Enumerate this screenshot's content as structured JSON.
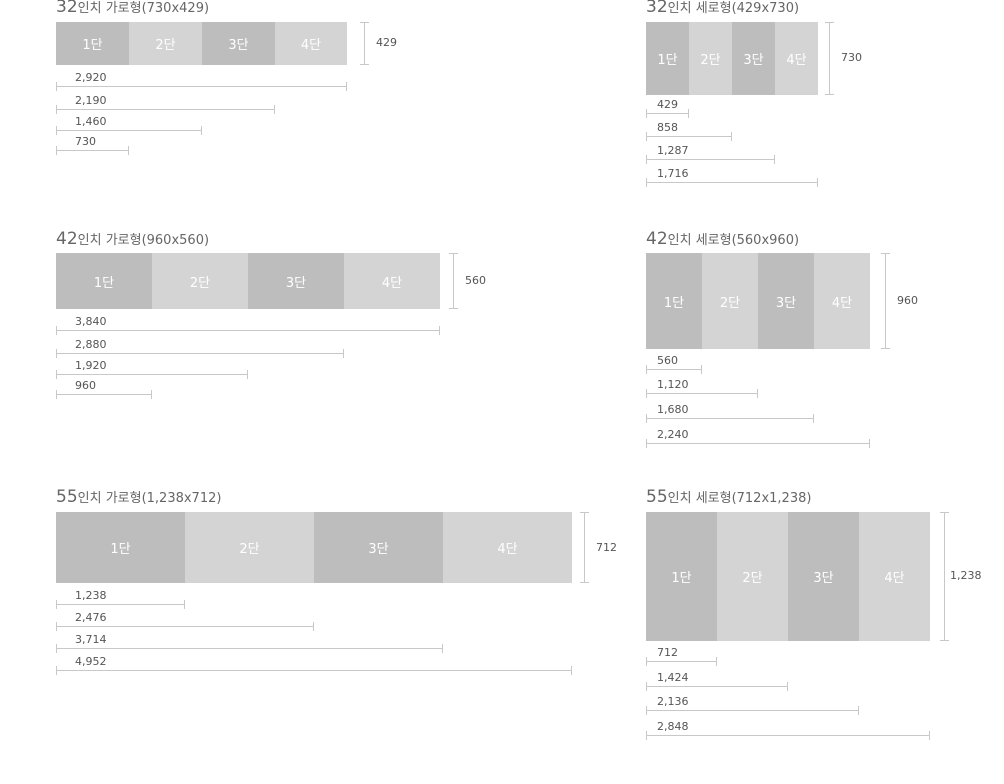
{
  "diagrams": [
    {
      "title_num": "32",
      "title_text": "인치 가로형(730x429)",
      "segments": [
        "1단",
        "2단",
        "3단",
        "4단"
      ],
      "height_label": "429",
      "widths": [
        "2,920",
        "2,190",
        "1,460",
        "730"
      ]
    },
    {
      "title_num": "32",
      "title_text": "인치 세로형(429x730)",
      "segments": [
        "1단",
        "2단",
        "3단",
        "4단"
      ],
      "height_label": "730",
      "widths": [
        "429",
        "858",
        "1,287",
        "1,716"
      ]
    },
    {
      "title_num": "42",
      "title_text": "인치 가로형(960x560)",
      "segments": [
        "1단",
        "2단",
        "3단",
        "4단"
      ],
      "height_label": "560",
      "widths": [
        "3,840",
        "2,880",
        "1,920",
        "960"
      ]
    },
    {
      "title_num": "42",
      "title_text": "인치 세로형(560x960)",
      "segments": [
        "1단",
        "2단",
        "3단",
        "4단"
      ],
      "height_label": "960",
      "widths": [
        "560",
        "1,120",
        "1,680",
        "2,240"
      ]
    },
    {
      "title_num": "55",
      "title_text": "인치 가로형(1,238x712)",
      "segments": [
        "1단",
        "2단",
        "3단",
        "4단"
      ],
      "height_label": "712",
      "widths": [
        "1,238",
        "2,476",
        "3,714",
        "4,952"
      ]
    },
    {
      "title_num": "55",
      "title_text": "인치 세로형(712x1,238)",
      "segments": [
        "1단",
        "2단",
        "3단",
        "4단"
      ],
      "height_label": "1,238",
      "widths": [
        "712",
        "1,424",
        "2,136",
        "2,848"
      ]
    }
  ]
}
